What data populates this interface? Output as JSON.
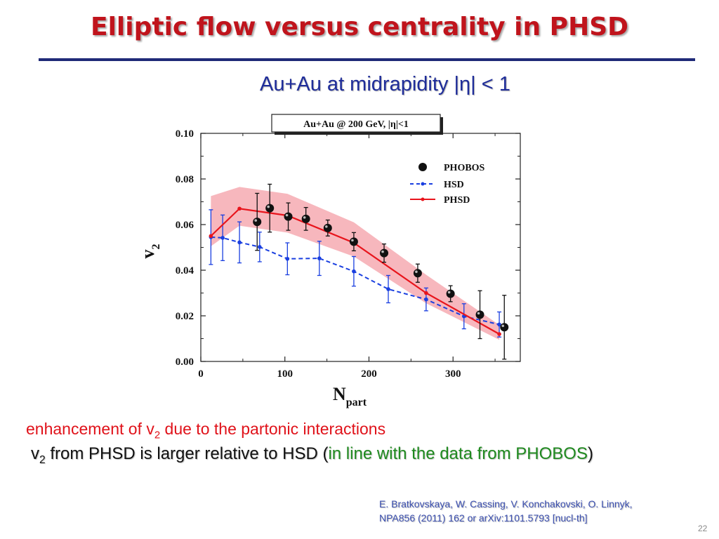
{
  "slide": {
    "title": "Elliptic flow versus centrality in PHSD",
    "subtitle": "Au+Au at midrapidity |η| < 1",
    "line1_pre": "enhancement of v",
    "line1_sub": "2",
    "line1_post": " due to the partonic interactions",
    "line2_pre": "v",
    "line2_sub": "2",
    "line2_mid": " from PHSD  is larger relative to HSD (",
    "line2_green": "in line with the data from PHOBOS",
    "line2_end": ")",
    "ref_line1": "E. Bratkovskaya,  W. Cassing,  V. Konchakovski,  O. Linnyk,",
    "ref_line2": "NPA856 (2011) 162 or arXiv:1101.5793 [nucl-th]",
    "page_number": "22"
  },
  "chart_data": {
    "type": "line",
    "box_label": "Au+Au @ 200 GeV,  |η|<1",
    "xlabel": "N",
    "xlabel_sub": "part",
    "ylabel": "v",
    "ylabel_sub": "2",
    "xlim": [
      0,
      380
    ],
    "ylim": [
      0,
      0.1
    ],
    "xticks": [
      0,
      100,
      200,
      300
    ],
    "xtick_labels": [
      "0",
      "100",
      "200",
      "300"
    ],
    "yticks": [
      0,
      0.02,
      0.04,
      0.06,
      0.08,
      0.1
    ],
    "ytick_labels": [
      "0.00",
      "0.02",
      "0.04",
      "0.06",
      "0.08",
      "0.10"
    ],
    "legend_position": "top-right",
    "colors": {
      "phobos": "#111111",
      "hsd": "#1a3fe0",
      "phsd": "#e8141c",
      "band": "#f7b7bd"
    },
    "series": [
      {
        "name": "PHOBOS",
        "style": "points",
        "x": [
          67,
          82,
          104,
          125,
          151,
          182,
          218,
          258,
          297,
          332,
          361
        ],
        "y": [
          0.0612,
          0.0672,
          0.0635,
          0.0625,
          0.0585,
          0.0525,
          0.0475,
          0.0387,
          0.0297,
          0.0205,
          0.015
        ],
        "err": [
          0.0125,
          0.0105,
          0.006,
          0.005,
          0.0035,
          0.004,
          0.004,
          0.004,
          0.0035,
          0.0105,
          0.014
        ]
      },
      {
        "name": "HSD",
        "style": "dashed",
        "x": [
          12,
          26,
          46,
          70,
          103,
          141,
          182,
          223,
          268,
          313,
          355
        ],
        "y": [
          0.0545,
          0.0542,
          0.0522,
          0.0502,
          0.045,
          0.0452,
          0.0395,
          0.0317,
          0.0272,
          0.0198,
          0.0162
        ],
        "err": [
          0.012,
          0.01,
          0.009,
          0.0065,
          0.007,
          0.0075,
          0.0065,
          0.006,
          0.005,
          0.0055,
          0.0055
        ]
      },
      {
        "name": "PHSD",
        "style": "solid",
        "x": [
          12,
          46,
          103,
          182,
          268,
          355
        ],
        "y": [
          0.055,
          0.067,
          0.064,
          0.052,
          0.03,
          0.012
        ],
        "band_upper": [
          0.0725,
          0.0765,
          0.0735,
          0.061,
          0.038,
          0.016
        ],
        "band_lower": [
          0.0505,
          0.0595,
          0.0565,
          0.046,
          0.0255,
          0.0095
        ]
      }
    ]
  }
}
